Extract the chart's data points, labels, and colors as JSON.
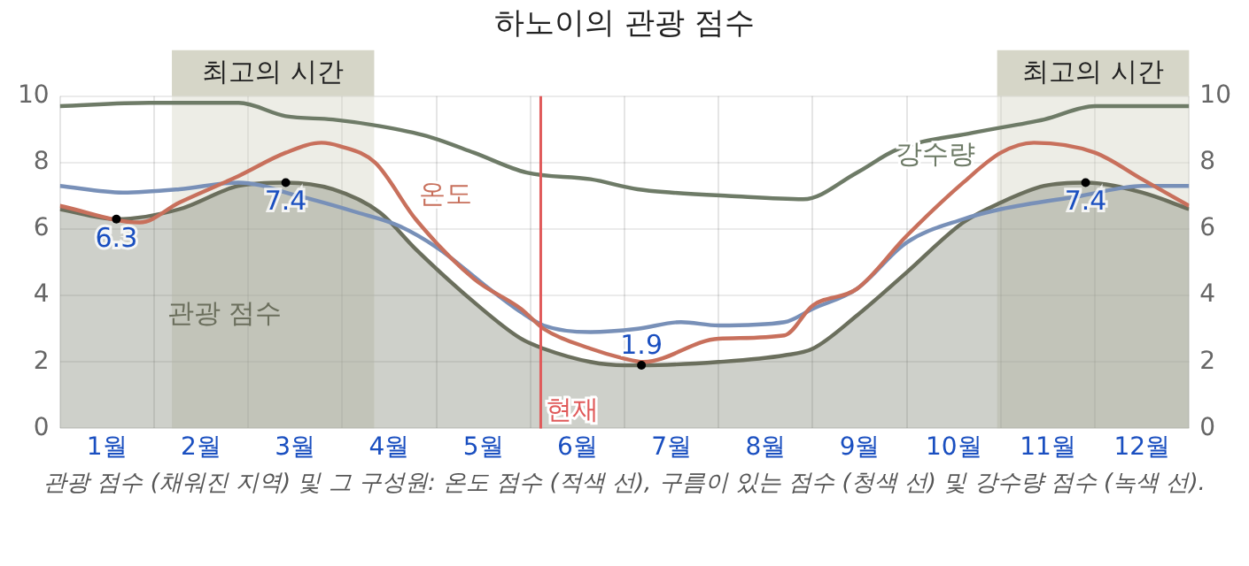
{
  "chart_data": {
    "type": "line",
    "title": "하노이의 관광 점수",
    "xlim": [
      0,
      12
    ],
    "xticks": [
      {
        "value": 0,
        "label": null
      },
      {
        "value": 0.5,
        "label": "1월"
      },
      {
        "value": 1,
        "label": null
      },
      {
        "value": 1.5,
        "label": "2월"
      },
      {
        "value": 2,
        "label": null
      },
      {
        "value": 2.5,
        "label": "3월"
      },
      {
        "value": 3,
        "label": null
      },
      {
        "value": 3.5,
        "label": "4월"
      },
      {
        "value": 4,
        "label": null
      },
      {
        "value": 4.5,
        "label": "5월"
      },
      {
        "value": 5,
        "label": null
      },
      {
        "value": 5.5,
        "label": "6월"
      },
      {
        "value": 6,
        "label": null
      },
      {
        "value": 6.5,
        "label": "7월"
      },
      {
        "value": 7,
        "label": null
      },
      {
        "value": 7.5,
        "label": "8월"
      },
      {
        "value": 8,
        "label": null
      },
      {
        "value": 8.5,
        "label": "9월"
      },
      {
        "value": 9,
        "label": null
      },
      {
        "value": 9.5,
        "label": "10월"
      },
      {
        "value": 10,
        "label": null
      },
      {
        "value": 10.5,
        "label": "11월"
      },
      {
        "value": 11,
        "label": null
      },
      {
        "value": 11.5,
        "label": "12월"
      },
      {
        "value": 12,
        "label": null
      }
    ],
    "ylim": [
      0,
      10
    ],
    "yticks": [
      0,
      2,
      4,
      6,
      8,
      10
    ],
    "y2lim": [
      0,
      10
    ],
    "y2ticks": [
      0,
      2,
      4,
      6,
      8,
      10
    ],
    "grid": true,
    "legend": false,
    "series": [
      {
        "name": "관광 점수",
        "type": "area",
        "color": "#6b6f5d",
        "x": [
          0,
          0.6,
          1.27,
          1.9,
          2.4,
          2.9,
          3.4,
          3.78,
          4.4,
          4.9,
          5.14,
          5.64,
          6.0,
          6.18,
          7.0,
          7.7,
          8.0,
          8.47,
          9.0,
          9.6,
          10.0,
          10.46,
          10.9,
          11.5,
          12
        ],
        "values": [
          6.6,
          6.3,
          6.6,
          7.3,
          7.4,
          7.2,
          6.5,
          5.4,
          3.8,
          2.7,
          2.4,
          2.0,
          1.9,
          1.9,
          2.0,
          2.2,
          2.4,
          3.4,
          4.7,
          6.2,
          6.8,
          7.3,
          7.4,
          7.1,
          6.6
        ]
      },
      {
        "name": "온도",
        "type": "line",
        "color": "#c8705c",
        "x": [
          0,
          0.85,
          1.27,
          1.9,
          2.4,
          2.78,
          2.97,
          3.35,
          3.78,
          4.4,
          4.9,
          5.14,
          5.64,
          6.0,
          6.2,
          7.0,
          7.7,
          8.0,
          8.47,
          9.0,
          9.6,
          10.0,
          10.35,
          11.0,
          11.5,
          12
        ],
        "values": [
          6.7,
          6.2,
          6.8,
          7.6,
          8.3,
          8.6,
          8.5,
          8.0,
          6.3,
          4.5,
          3.6,
          3.0,
          2.4,
          2.1,
          2.0,
          2.7,
          2.8,
          3.7,
          4.2,
          5.8,
          7.4,
          8.3,
          8.6,
          8.3,
          7.5,
          6.7
        ]
      },
      {
        "type": "line",
        "color": "#7890b8",
        "x": [
          0,
          0.67,
          1.27,
          1.9,
          2.53,
          3.16,
          3.6,
          4.03,
          4.52,
          4.9,
          5.14,
          5.64,
          6.14,
          6.6,
          7.0,
          7.7,
          8.0,
          8.47,
          9.0,
          9.6,
          10.0,
          10.85,
          11.5,
          12
        ],
        "values": [
          7.3,
          7.1,
          7.2,
          7.4,
          7.0,
          6.5,
          6.1,
          5.4,
          4.3,
          3.5,
          3.1,
          2.9,
          3.0,
          3.2,
          3.1,
          3.2,
          3.6,
          4.2,
          5.6,
          6.3,
          6.6,
          7.0,
          7.3,
          7.3
        ]
      },
      {
        "name": "강수량",
        "type": "line",
        "color": "#6e7b67",
        "x": [
          0,
          0.95,
          1.9,
          2.4,
          2.9,
          3.4,
          3.9,
          4.4,
          4.96,
          5.64,
          6.14,
          6.5,
          7.1,
          7.9,
          8.47,
          8.9,
          9.7,
          10.46,
          11.0,
          12
        ],
        "values": [
          9.7,
          9.8,
          9.8,
          9.4,
          9.3,
          9.1,
          8.8,
          8.3,
          7.7,
          7.5,
          7.2,
          7.1,
          7.0,
          6.9,
          7.7,
          8.4,
          8.9,
          9.3,
          9.7,
          9.7
        ]
      }
    ],
    "bands": [
      {
        "axis": "x",
        "from": 1.19,
        "to": 3.34,
        "label": "최고의 시간",
        "color": "#d6d6c8"
      },
      {
        "axis": "x",
        "from": 9.96,
        "to": 12,
        "label": "최고의 시간",
        "color": "#d6d6c8"
      }
    ],
    "ref_lines": [
      {
        "axis": "x",
        "value": 5.11,
        "label": "현재",
        "color": "#e05a5a"
      }
    ],
    "annotations": [
      {
        "text": "6.3",
        "x": 0.6,
        "y": 6.3
      },
      {
        "text": "7.4",
        "x": 2.4,
        "y": 7.4
      },
      {
        "text": "1.9",
        "x": 6.18,
        "y": 1.9
      },
      {
        "text": "7.4",
        "x": 10.9,
        "y": 7.4
      },
      "관광 점수 (채워진 지역) 및 그 구성원: 온도 점수 (적색 선), 구름이 있는 점수 (청색 선) 및 강수량 점수 (녹색 선)."
    ]
  }
}
